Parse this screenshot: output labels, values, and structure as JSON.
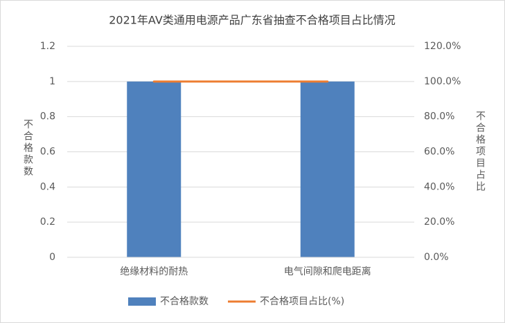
{
  "chart_data": {
    "type": "bar",
    "title": "2021年AV类通用电源产品广东省抽查不合格项目占比情况",
    "categories": [
      "绝缘材料的耐热",
      "电气间隙和爬电距离"
    ],
    "y_label": "不合格款数",
    "y2_label": "不合格项目占比",
    "series": [
      {
        "name": "不合格款数",
        "type": "bar",
        "color": "#4f81bd",
        "values": [
          1,
          1
        ]
      },
      {
        "name": "不合格项目占比(%)",
        "type": "line",
        "axis": "y2",
        "color": "#ed7d31",
        "values": [
          100,
          100
        ]
      }
    ],
    "ylim": [
      0,
      1.2
    ],
    "yticks": [
      0,
      0.2,
      0.4,
      0.6,
      0.8,
      1,
      1.2
    ],
    "y2lim": [
      0,
      120
    ],
    "y2ticks": [
      {
        "value": 0,
        "label": "0.0%"
      },
      {
        "value": 20,
        "label": "20.0%"
      },
      {
        "value": 40,
        "label": "40.0%"
      },
      {
        "value": 60,
        "label": "60.0%"
      },
      {
        "value": 80,
        "label": "80.0%"
      },
      {
        "value": 100,
        "label": "100.0%"
      },
      {
        "value": 120,
        "label": "120.0%"
      }
    ],
    "grid": true,
    "legend": "bottom"
  }
}
